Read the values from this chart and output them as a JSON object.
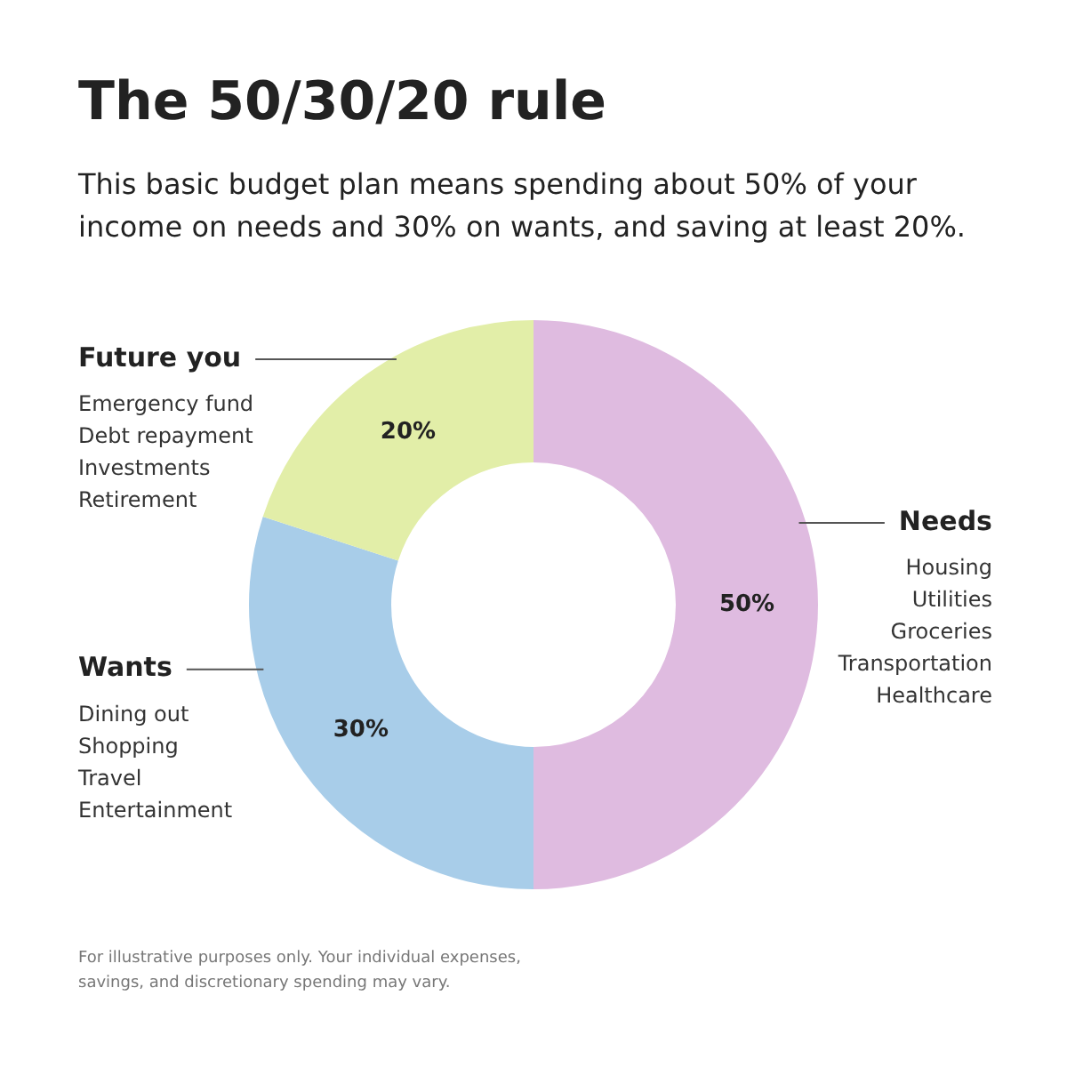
{
  "chart_data": {
    "type": "donut",
    "title": "The 50/30/20 rule",
    "subtitle": "This basic budget plan means spending about 50% of your income on needs and 30% on wants, and saving at least 20%.",
    "categories": [
      "Needs",
      "Wants",
      "Future you"
    ],
    "values": [
      50,
      30,
      20
    ],
    "colors": [
      "#dfbbe0",
      "#a8cde9",
      "#e2eea8"
    ],
    "value_labels": [
      "50%",
      "30%",
      "20%"
    ],
    "legend": false,
    "annotations": [
      "Housing\nUtilities\nGroceries\nTransportation\nHealthcare",
      "Dining out\nShopping\nTravel\nEntertainment",
      "Emergency fund\nDebt repayment\nInvestments\nRetirement",
      "For illustrative purposes only. Your individual expenses, savings, and discretionary spending may vary."
    ]
  }
}
